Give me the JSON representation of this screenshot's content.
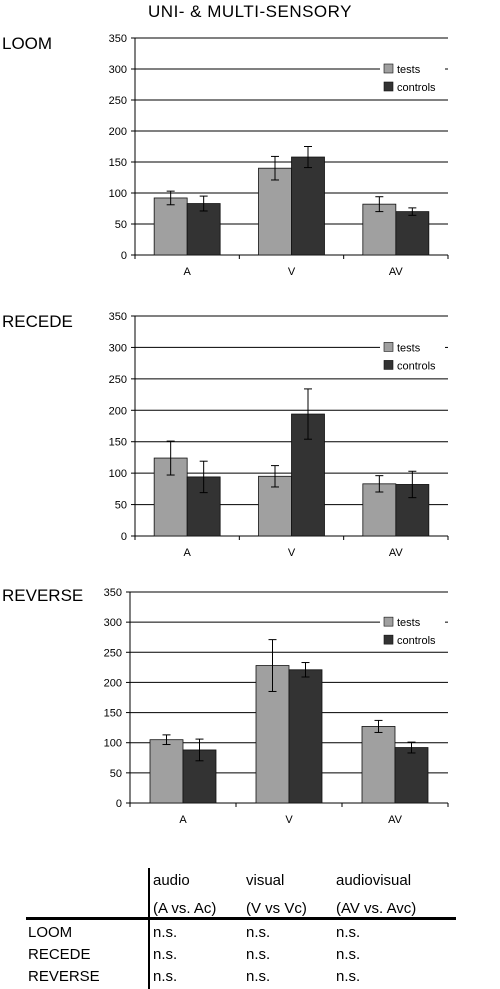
{
  "title": "UNI- & MULTI-SENSORY",
  "colors": {
    "tests": "#a0a0a0",
    "controls": "#333333"
  },
  "chart_data": [
    {
      "type": "bar",
      "panel_label": "LOOM",
      "categories": [
        "A",
        "V",
        "AV"
      ],
      "series": [
        {
          "name": "tests",
          "values": [
            92,
            140,
            82
          ],
          "errors": [
            11,
            19,
            12
          ]
        },
        {
          "name": "controls",
          "values": [
            83,
            158,
            70
          ],
          "errors": [
            12,
            17,
            6
          ]
        }
      ],
      "ylim": [
        0,
        350
      ],
      "yticks": [
        "0",
        "50",
        "100",
        "150",
        "200",
        "250",
        "300",
        "350"
      ],
      "grid": true,
      "legend": "top-right"
    },
    {
      "type": "bar",
      "panel_label": "RECEDE",
      "categories": [
        "A",
        "V",
        "AV"
      ],
      "series": [
        {
          "name": "tests",
          "values": [
            124,
            95,
            83
          ],
          "errors": [
            27,
            17,
            13
          ]
        },
        {
          "name": "controls",
          "values": [
            94,
            194,
            82
          ],
          "errors": [
            25,
            40,
            21
          ]
        }
      ],
      "ylim": [
        0,
        350
      ],
      "yticks": [
        "0",
        "50",
        "100",
        "150",
        "200",
        "250",
        "300",
        "350"
      ],
      "grid": true,
      "legend": "top-right"
    },
    {
      "type": "bar",
      "panel_label": "REVERSE",
      "categories": [
        "A",
        "V",
        "AV"
      ],
      "series": [
        {
          "name": "tests",
          "values": [
            105,
            228,
            127
          ],
          "errors": [
            8,
            43,
            10
          ]
        },
        {
          "name": "controls",
          "values": [
            88,
            221,
            92
          ],
          "errors": [
            18,
            12,
            9
          ]
        }
      ],
      "ylim": [
        0,
        350
      ],
      "yticks": [
        "0",
        "50",
        "100",
        "150",
        "200",
        "250",
        "300",
        "350"
      ],
      "grid": true,
      "legend": "top-right"
    }
  ],
  "summary_table": {
    "header_top": [
      "audio",
      "visual",
      "audiovisual"
    ],
    "header_bottom": [
      "(A vs. Ac)",
      "(V vs Vc)",
      "(AV vs. Avc)"
    ],
    "rows": [
      {
        "label": "LOOM",
        "cells": [
          "n.s.",
          "n.s.",
          "n.s."
        ]
      },
      {
        "label": "RECEDE",
        "cells": [
          "n.s.",
          "n.s.",
          "n.s."
        ]
      },
      {
        "label": "REVERSE",
        "cells": [
          "n.s.",
          "n.s.",
          "n.s."
        ]
      }
    ]
  }
}
